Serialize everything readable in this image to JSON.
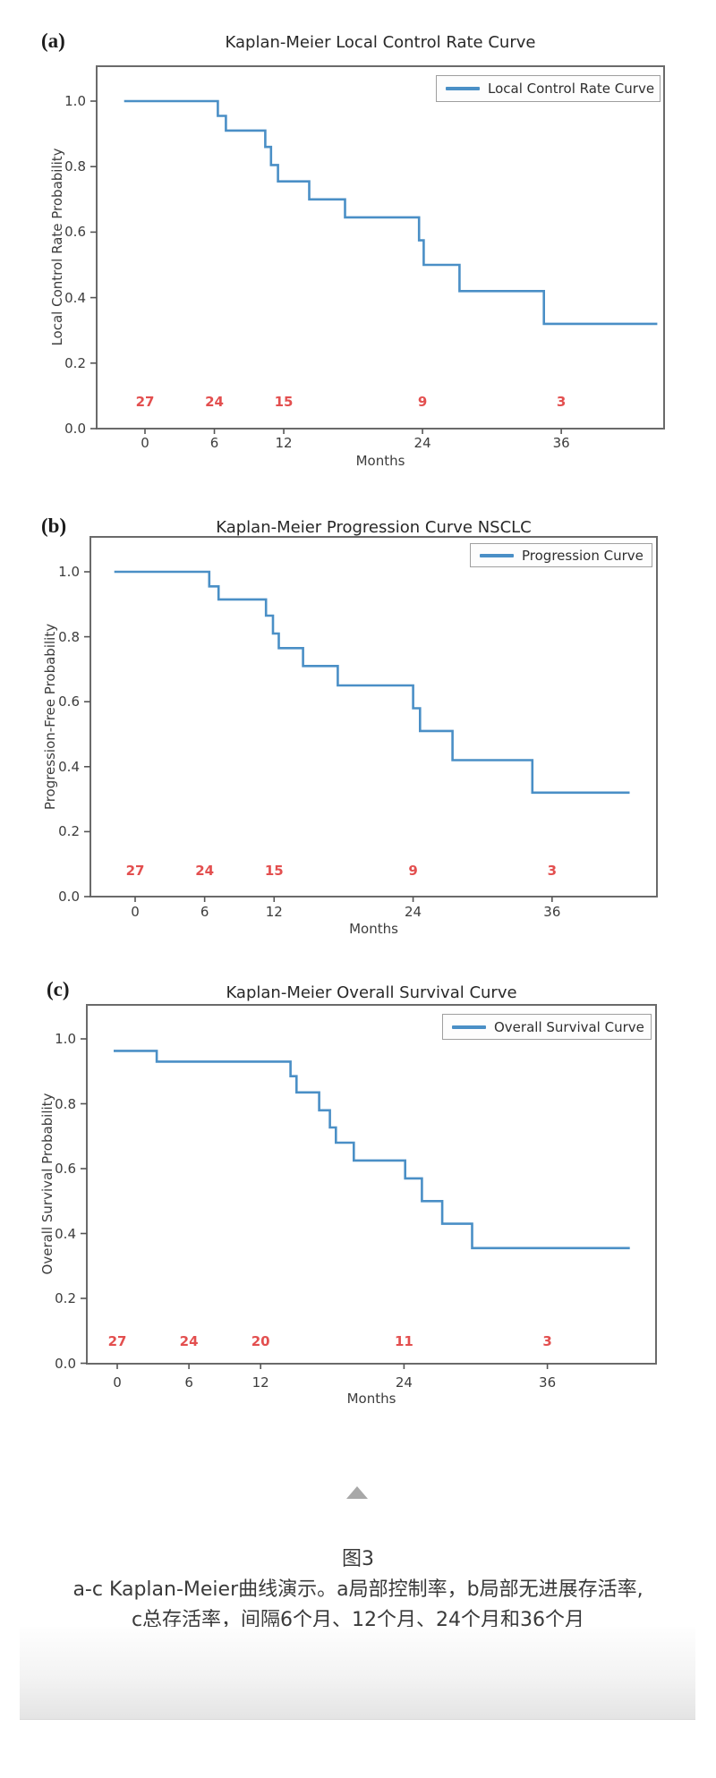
{
  "figure": {
    "number": "图3",
    "caption_line1": "a-c Kaplan-Meier曲线演示。a局部控制率，b局部无进展存活率,",
    "caption_line2": "c总存活率，间隔6个月、12个月、24个月和36个月"
  },
  "chart_data": [
    {
      "type": "line",
      "subtype": "kaplan-meier-step",
      "panel_label": "(a)",
      "title": "Kaplan-Meier Local Control Rate Curve",
      "xlabel": "Months",
      "ylabel": "Local Control Rate Probability",
      "legend_label": "Local Control Rate Curve",
      "legend_position": "upper right",
      "line_color": "#4a8fc6",
      "xlim": [
        -4.2,
        44.9
      ],
      "ylim": [
        0,
        1.11
      ],
      "xticks": [
        0,
        6,
        12,
        24,
        36
      ],
      "ytick_labels": [
        "1.0",
        "0.8",
        "0.6",
        "0.4",
        "0.2",
        "0.0"
      ],
      "steps": [
        [
          -1.8,
          1.0
        ],
        [
          6.3,
          0.955
        ],
        [
          7.0,
          0.91
        ],
        [
          10.4,
          0.86
        ],
        [
          10.9,
          0.805
        ],
        [
          11.5,
          0.755
        ],
        [
          14.2,
          0.7
        ],
        [
          17.3,
          0.645
        ],
        [
          23.7,
          0.575
        ],
        [
          24.1,
          0.5
        ],
        [
          27.2,
          0.42
        ],
        [
          34.5,
          0.32
        ],
        [
          44.3,
          0.32
        ]
      ],
      "at_risk": {
        "months": [
          0,
          6,
          12,
          24,
          36
        ],
        "values": [
          27,
          24,
          15,
          9,
          3
        ],
        "color": "#e34f4f"
      }
    },
    {
      "type": "line",
      "subtype": "kaplan-meier-step",
      "panel_label": "(b)",
      "title": "Kaplan-Meier Progression Curve NSCLC",
      "xlabel": "Months",
      "ylabel": "Progression-Free Probability",
      "legend_label": "Progression Curve",
      "legend_position": "upper right",
      "line_color": "#4a8fc6",
      "xlim": [
        -3.9,
        45.1
      ],
      "ylim": [
        0,
        1.11
      ],
      "xticks": [
        0,
        6,
        12,
        24,
        36
      ],
      "ytick_labels": [
        "1.0",
        "0.8",
        "0.6",
        "0.4",
        "0.2",
        "0.0"
      ],
      "steps": [
        [
          -1.8,
          1.0
        ],
        [
          6.4,
          0.955
        ],
        [
          7.2,
          0.915
        ],
        [
          11.3,
          0.865
        ],
        [
          11.9,
          0.81
        ],
        [
          12.4,
          0.765
        ],
        [
          14.5,
          0.71
        ],
        [
          17.5,
          0.65
        ],
        [
          24.0,
          0.58
        ],
        [
          24.6,
          0.51
        ],
        [
          27.4,
          0.42
        ],
        [
          34.3,
          0.32
        ],
        [
          42.7,
          0.32
        ]
      ],
      "at_risk": {
        "months": [
          0,
          6,
          12,
          24,
          36
        ],
        "values": [
          27,
          24,
          15,
          9,
          3
        ],
        "color": "#e34f4f"
      }
    },
    {
      "type": "line",
      "subtype": "kaplan-meier-step",
      "panel_label": "(c)",
      "title": "Kaplan-Meier Overall Survival Curve",
      "xlabel": "Months",
      "ylabel": "Overall Survival Probability",
      "legend_label": "Overall Survival Curve",
      "legend_position": "upper right",
      "line_color": "#4a8fc6",
      "xlim": [
        -2.5,
        45.1
      ],
      "ylim": [
        0,
        1.11
      ],
      "xticks": [
        0,
        6,
        12,
        24,
        36
      ],
      "ytick_labels": [
        "1.0",
        "0.8",
        "0.6",
        "0.4",
        "0.2",
        "0.0"
      ],
      "steps": [
        [
          -0.3,
          0.963
        ],
        [
          3.3,
          0.93
        ],
        [
          14.5,
          0.885
        ],
        [
          15.0,
          0.835
        ],
        [
          16.9,
          0.78
        ],
        [
          17.8,
          0.727
        ],
        [
          18.3,
          0.68
        ],
        [
          19.8,
          0.625
        ],
        [
          24.1,
          0.57
        ],
        [
          25.5,
          0.5
        ],
        [
          27.2,
          0.43
        ],
        [
          29.7,
          0.355
        ],
        [
          42.9,
          0.355
        ]
      ],
      "at_risk": {
        "months": [
          0,
          6,
          12,
          24,
          36
        ],
        "values": [
          27,
          24,
          20,
          11,
          3
        ],
        "color": "#e34f4f"
      }
    }
  ]
}
